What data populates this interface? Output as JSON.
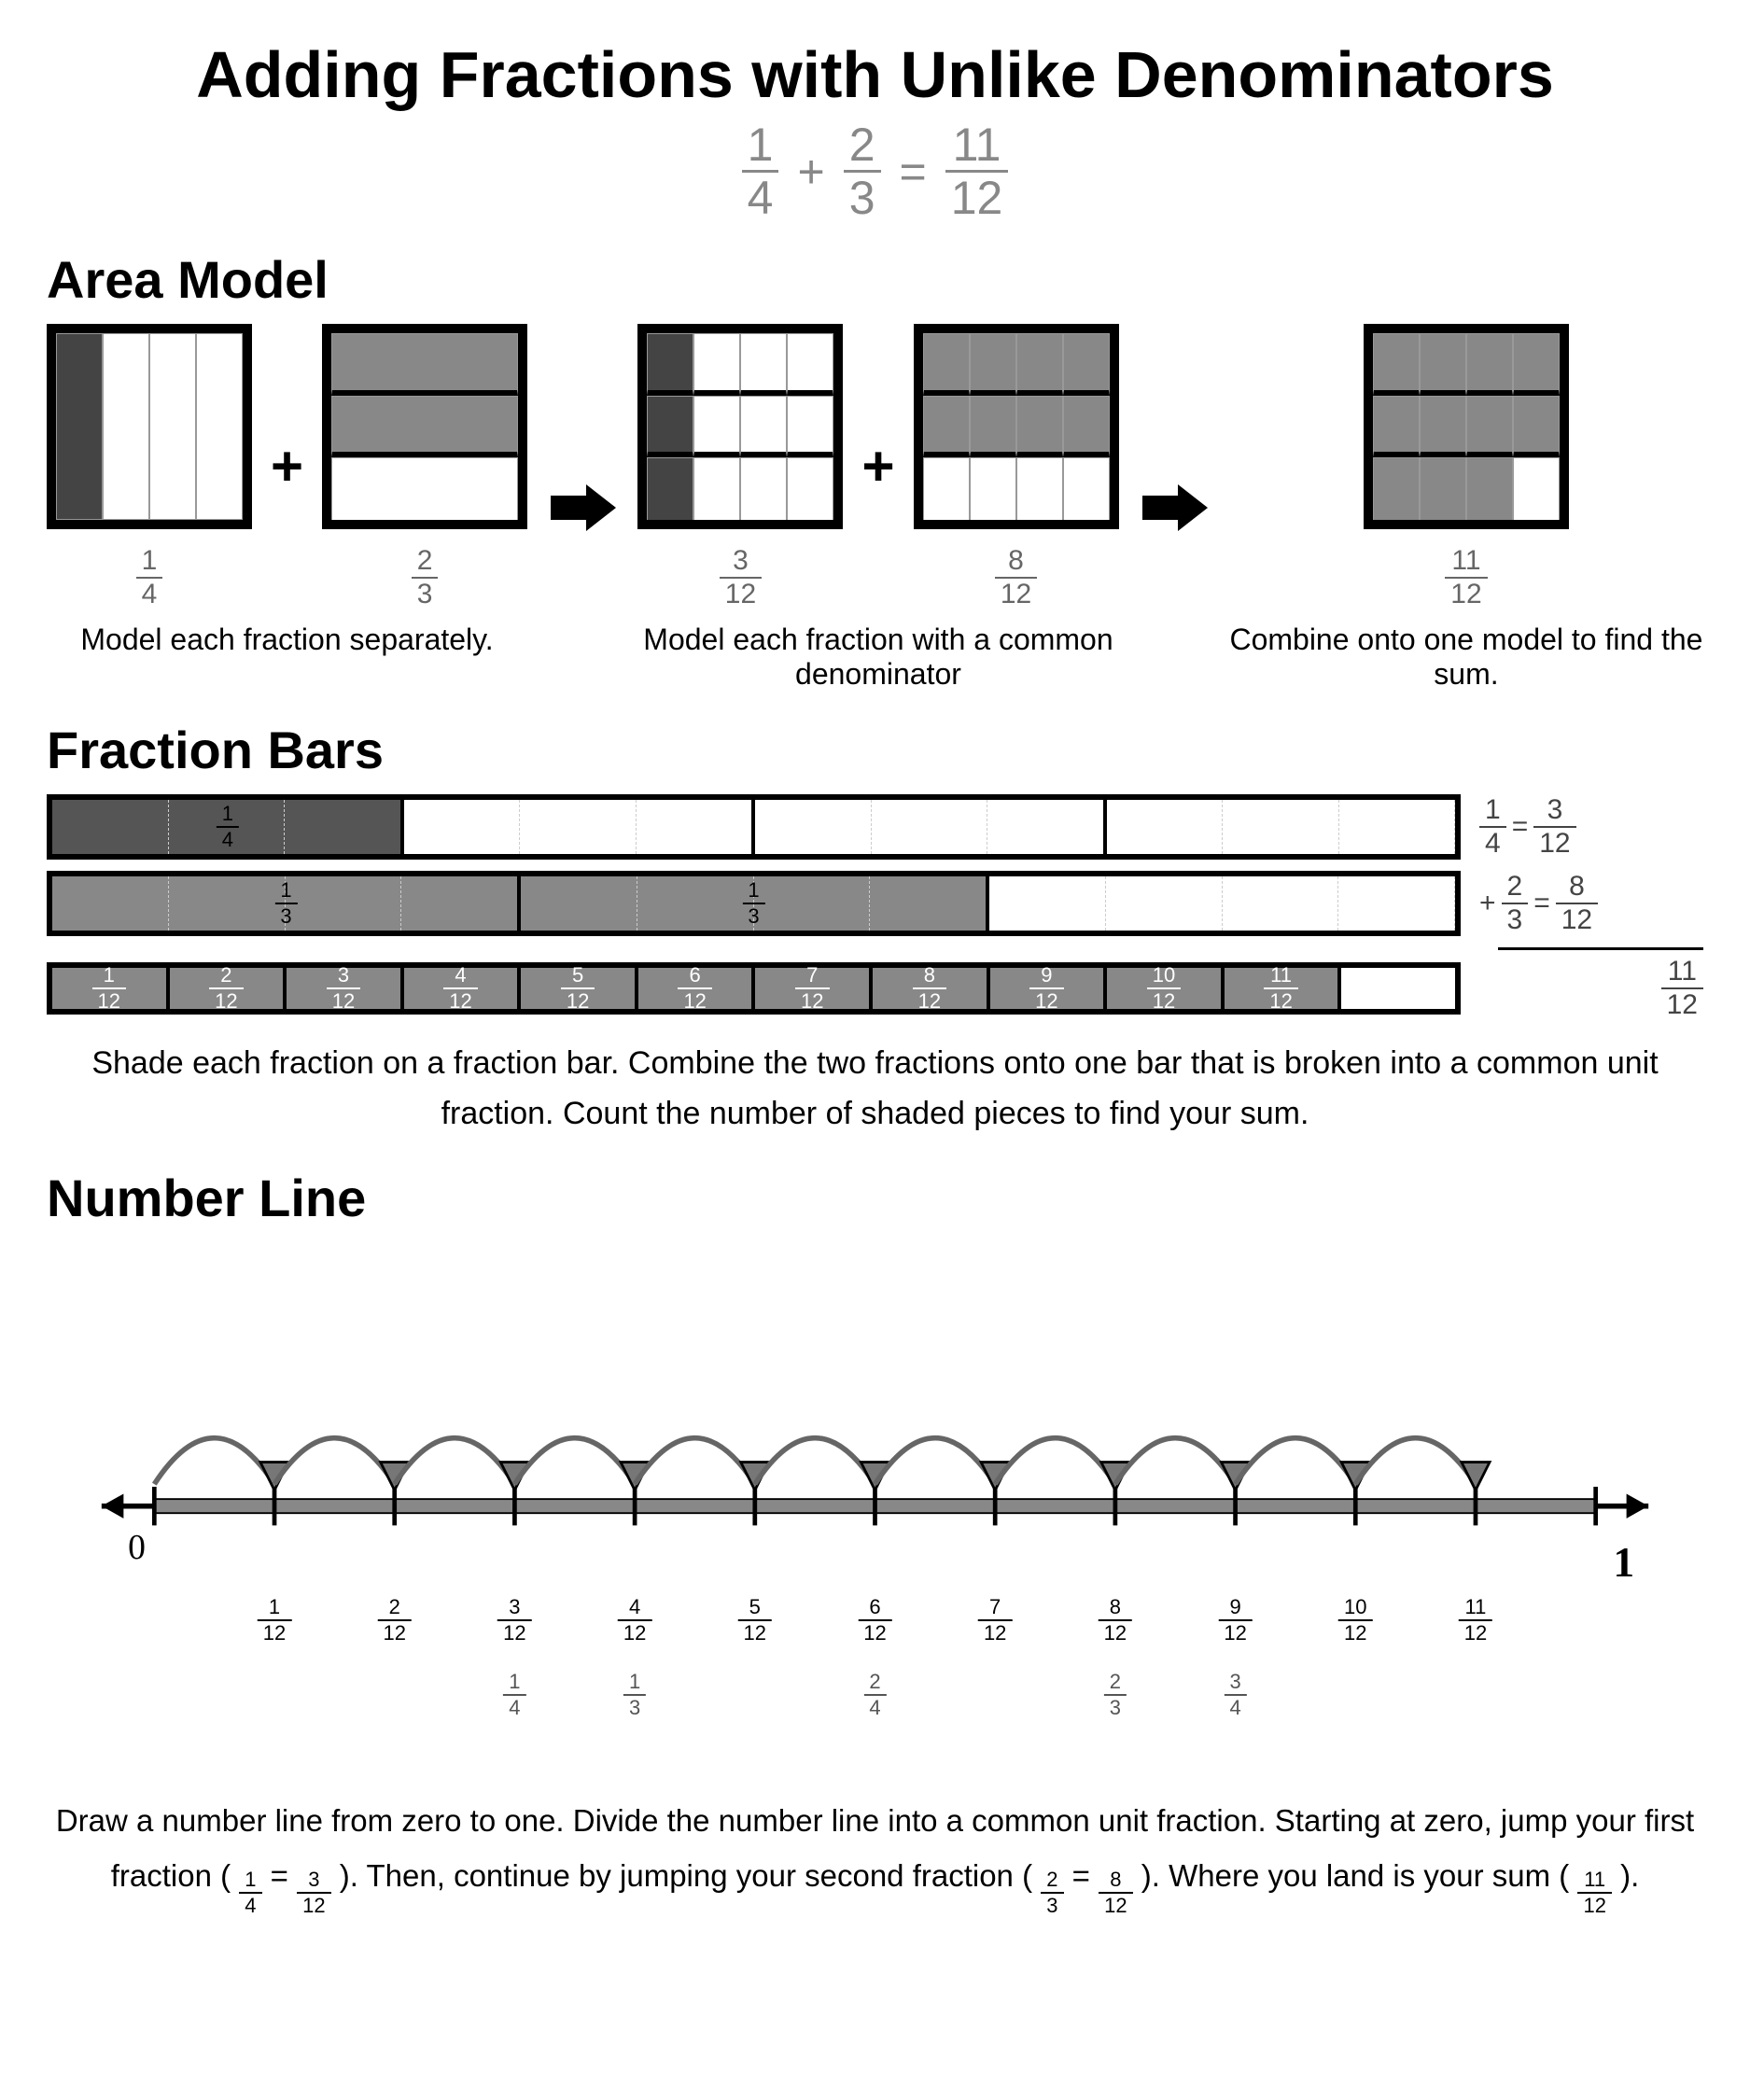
{
  "title": "Adding Fractions with Unlike Denominators",
  "equation": {
    "a": {
      "num": "1",
      "den": "4"
    },
    "b": {
      "num": "2",
      "den": "3"
    },
    "sum": {
      "num": "11",
      "den": "12"
    },
    "plus": "+",
    "equals": "="
  },
  "sections": {
    "area": "Area Model",
    "bars": "Fraction Bars",
    "line": "Number Line"
  },
  "area": {
    "boxes": [
      {
        "cols": 4,
        "rows": 1,
        "shaded": [
          0
        ],
        "dark": true,
        "label": {
          "num": "1",
          "den": "4"
        }
      },
      {
        "cols": 1,
        "rows": 3,
        "shaded": [
          0,
          1
        ],
        "dark": false,
        "label": {
          "num": "2",
          "den": "3"
        }
      },
      {
        "cols": 4,
        "rows": 3,
        "shaded": [
          0,
          4,
          8
        ],
        "dark": true,
        "label": {
          "num": "3",
          "den": "12"
        }
      },
      {
        "cols": 4,
        "rows": 3,
        "shaded": [
          0,
          1,
          2,
          3,
          4,
          5,
          6,
          7
        ],
        "dark": false,
        "label": {
          "num": "8",
          "den": "12"
        }
      },
      {
        "cols": 4,
        "rows": 3,
        "shaded": [
          0,
          1,
          2,
          3,
          4,
          5,
          6,
          7,
          8,
          9,
          10
        ],
        "dark": false,
        "label": {
          "num": "11",
          "den": "12"
        }
      }
    ],
    "captions": [
      "Model each fraction separately.",
      "Model each fraction with a common denominator",
      "Combine onto one model to find the sum."
    ],
    "plus": "+"
  },
  "bars": {
    "bar1": {
      "segments": 12,
      "major_every": 3,
      "filled": 3,
      "labels_in": [
        {
          "pos": 1.5,
          "num": "1",
          "den": "4"
        }
      ],
      "side": {
        "a": {
          "num": "1",
          "den": "4"
        },
        "eq": "=",
        "b": {
          "num": "3",
          "den": "12"
        }
      }
    },
    "bar2": {
      "segments": 12,
      "major_every": 4,
      "filled": 8,
      "labels_in": [
        {
          "pos": 2,
          "num": "1",
          "den": "3"
        },
        {
          "pos": 6,
          "num": "1",
          "den": "3"
        }
      ],
      "side": {
        "plus": "+",
        "a": {
          "num": "2",
          "den": "3"
        },
        "eq": "=",
        "b": {
          "num": "8",
          "den": "12"
        }
      }
    },
    "bar3": {
      "segments": 12,
      "filled": 11,
      "labels_each": [
        "1",
        "2",
        "3",
        "4",
        "5",
        "6",
        "7",
        "8",
        "9",
        "10",
        "11"
      ],
      "den": "12",
      "side": {
        "b": {
          "num": "11",
          "den": "12"
        }
      }
    },
    "caption": "Shade each fraction on a fraction bar. Combine the two fractions onto one bar that is broken into a common unit fraction. Count the number of shaded pieces to find your sum."
  },
  "numberline": {
    "ticks": 12,
    "zero": "0",
    "one": "1",
    "labels": [
      {
        "num": "1",
        "den": "12"
      },
      {
        "num": "2",
        "den": "12"
      },
      {
        "num": "3",
        "den": "12"
      },
      {
        "num": "4",
        "den": "12"
      },
      {
        "num": "5",
        "den": "12"
      },
      {
        "num": "6",
        "den": "12"
      },
      {
        "num": "7",
        "den": "12"
      },
      {
        "num": "8",
        "den": "12"
      },
      {
        "num": "9",
        "den": "12"
      },
      {
        "num": "10",
        "den": "12"
      },
      {
        "num": "11",
        "den": "12"
      }
    ],
    "sublabels": [
      {
        "at": 3,
        "num": "1",
        "den": "4"
      },
      {
        "at": 4,
        "num": "1",
        "den": "3"
      },
      {
        "at": 6,
        "num": "2",
        "den": "4"
      },
      {
        "at": 8,
        "num": "2",
        "den": "3"
      },
      {
        "at": 9,
        "num": "3",
        "den": "4"
      }
    ],
    "jumps_to": 11,
    "caption_parts": {
      "p1": "Draw a number line from zero to one. Divide the number line into a common unit fraction. Starting at zero, jump your first fraction (",
      "f1a": {
        "num": "1",
        "den": "4"
      },
      "eq": " = ",
      "f1b": {
        "num": "3",
        "den": "12"
      },
      "p2": ").  Then, continue by jumping your second fraction (",
      "f2a": {
        "num": "2",
        "den": "3"
      },
      "f2b": {
        "num": "8",
        "den": "12"
      },
      "p3": ").  Where you land is your sum (",
      "f3": {
        "num": "11",
        "den": "12"
      },
      "p4": ")."
    },
    "colors": {
      "arc": "#666",
      "tri_fill": "#777",
      "tri_stroke": "#000",
      "axis": "#000",
      "bar": "#888"
    }
  }
}
